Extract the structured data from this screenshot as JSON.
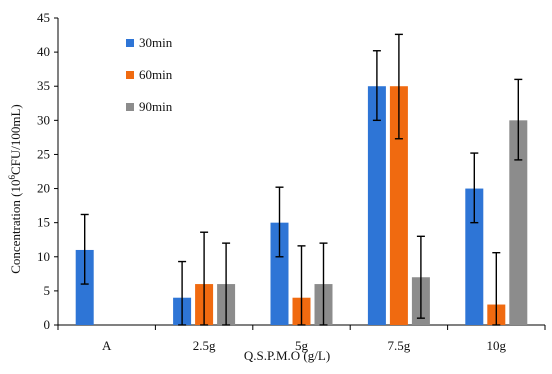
{
  "chart_data": {
    "type": "bar",
    "xlabel": "Q.S.P.M.O (g/L)",
    "ylabel_parts": {
      "before": "Concentration (10",
      "sup": "6",
      "after": "CFU/100mL)"
    },
    "ylim": [
      0,
      45
    ],
    "yticks": [
      0,
      5,
      10,
      15,
      20,
      25,
      30,
      35,
      40,
      45
    ],
    "ytick_labels": [
      "0",
      "5",
      "10",
      "15",
      "20",
      "25",
      "30",
      "35",
      "40",
      "45"
    ],
    "categories": [
      "A",
      "2.5g",
      "5g",
      "7.5g",
      "10g"
    ],
    "series": [
      {
        "name": "30min",
        "color": "#2e75d6",
        "values": [
          11,
          4,
          15,
          35,
          20
        ],
        "err_low": [
          6,
          0,
          10,
          30,
          15
        ],
        "err_high": [
          16.2,
          9.3,
          20.2,
          40.2,
          25.2
        ]
      },
      {
        "name": "60min",
        "color": "#f06a10",
        "values": [
          null,
          6,
          4,
          35,
          3
        ],
        "err_low": [
          null,
          0,
          0,
          27.3,
          0
        ],
        "err_high": [
          null,
          13.6,
          11.6,
          42.6,
          10.6
        ]
      },
      {
        "name": "90min",
        "color": "#8c8c8c",
        "values": [
          null,
          6,
          6,
          7,
          30
        ],
        "err_low": [
          null,
          0,
          0,
          1,
          24.2
        ],
        "err_high": [
          null,
          12,
          12,
          13,
          36
        ]
      }
    ],
    "legend_position": "top-left",
    "grid": false
  }
}
